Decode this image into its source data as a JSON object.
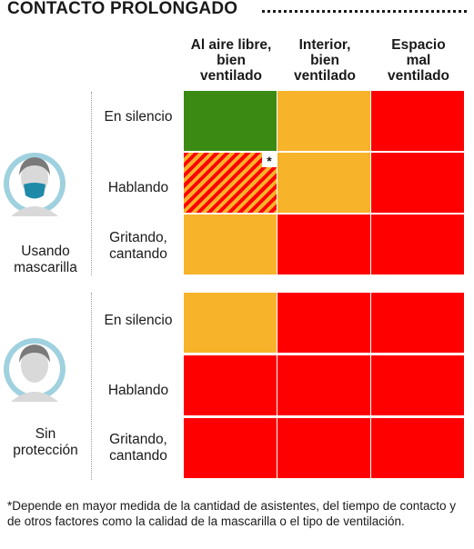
{
  "title": "CONTACTO PROLONGADO",
  "columns": [
    {
      "lines": [
        "Al aire libre,",
        "bien",
        "ventilado"
      ]
    },
    {
      "lines": [
        "Interior,",
        "bien",
        "ventilado"
      ]
    },
    {
      "lines": [
        "Espacio",
        "mal",
        "ventilado"
      ]
    }
  ],
  "groups": [
    {
      "label_lines": [
        "Usando",
        "mascarilla"
      ],
      "avatar_icon": "person-with-mask-icon",
      "rows": [
        {
          "label_lines": [
            "En silencio"
          ],
          "cells": [
            "green",
            "orange",
            "red"
          ]
        },
        {
          "label_lines": [
            "Hablando"
          ],
          "cells": [
            "hatched",
            "orange",
            "red"
          ]
        },
        {
          "label_lines": [
            "Gritando,",
            "cantando"
          ],
          "cells": [
            "orange",
            "red",
            "red"
          ]
        }
      ]
    },
    {
      "label_lines": [
        "Sin",
        "protección"
      ],
      "avatar_icon": "person-without-mask-icon",
      "rows": [
        {
          "label_lines": [
            "En silencio"
          ],
          "cells": [
            "orange",
            "red",
            "red"
          ]
        },
        {
          "label_lines": [
            "Hablando"
          ],
          "cells": [
            "red",
            "red",
            "red"
          ]
        },
        {
          "label_lines": [
            "Gritando,",
            "cantando"
          ],
          "cells": [
            "red",
            "red",
            "red"
          ]
        }
      ]
    }
  ],
  "asterisk": "*",
  "footnote": "*Depende en mayor medida de la cantidad de asistentes, del tiempo de contacto y de otros factores como la calidad de la mascarilla o el tipo de ventilación.",
  "colors": {
    "green": "#3a8a14",
    "orange": "#f7b329",
    "red": "#ff0000",
    "avatar_ring": "#9fd1df",
    "mask": "#1f8aa8"
  }
}
